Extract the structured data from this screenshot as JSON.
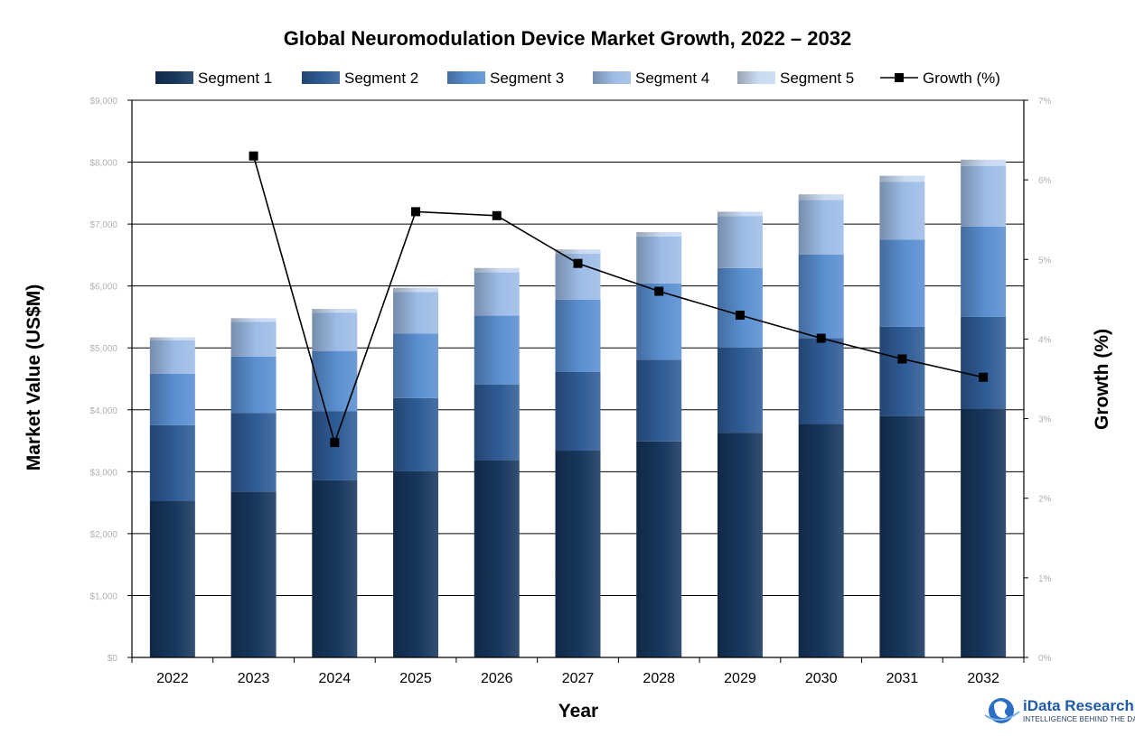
{
  "chart_data": {
    "type": "bar",
    "stacked": true,
    "title": "Global Neuromodulation Device Market Growth, 2022 – 2032",
    "xlabel": "Year",
    "ylabel": "Market Value (US$M)",
    "y2label": "Growth (%)",
    "categories": [
      "2022",
      "2023",
      "2024",
      "2025",
      "2026",
      "2027",
      "2028",
      "2029",
      "2030",
      "2031",
      "2032"
    ],
    "series": [
      {
        "name": "Segment 1",
        "color": "#17375e",
        "values": [
          2530,
          2680,
          2860,
          3010,
          3190,
          3340,
          3490,
          3630,
          3770,
          3900,
          4020
        ]
      },
      {
        "name": "Segment 2",
        "color": "#2f5c96",
        "values": [
          1220,
          1270,
          1120,
          1180,
          1220,
          1270,
          1320,
          1370,
          1390,
          1440,
          1480
        ]
      },
      {
        "name": "Segment 3",
        "color": "#5a8fd1",
        "values": [
          830,
          910,
          970,
          1040,
          1110,
          1170,
          1230,
          1290,
          1350,
          1410,
          1460
        ]
      },
      {
        "name": "Segment 4",
        "color": "#9dbce6",
        "values": [
          540,
          560,
          620,
          670,
          700,
          740,
          760,
          840,
          880,
          930,
          980
        ]
      },
      {
        "name": "Segment 5",
        "color": "#c9daf1",
        "values": [
          50,
          60,
          60,
          70,
          70,
          70,
          70,
          70,
          90,
          100,
          100
        ]
      }
    ],
    "line_series": {
      "name": "Growth (%)",
      "axis": "right",
      "color": "#000000",
      "values": [
        null,
        6.3,
        2.7,
        5.6,
        5.55,
        4.95,
        4.6,
        4.3,
        4.01,
        3.75,
        3.52
      ]
    },
    "y_ticks": [
      "$0",
      "$1,000",
      "$2,000",
      "$3,000",
      "$4,000",
      "$5,000",
      "$6,000",
      "$7,000",
      "$8,000",
      "$9,000"
    ],
    "y2_ticks": [
      "0%",
      "1%",
      "2%",
      "3%",
      "4%",
      "5%",
      "6%",
      "7%"
    ],
    "ylim": [
      0,
      9000
    ],
    "y2lim": [
      0,
      7
    ],
    "grid": true,
    "legend_position": "top"
  },
  "logo": {
    "name": "iData Research",
    "tagline": "INTELLIGENCE BEHIND THE DATA"
  }
}
